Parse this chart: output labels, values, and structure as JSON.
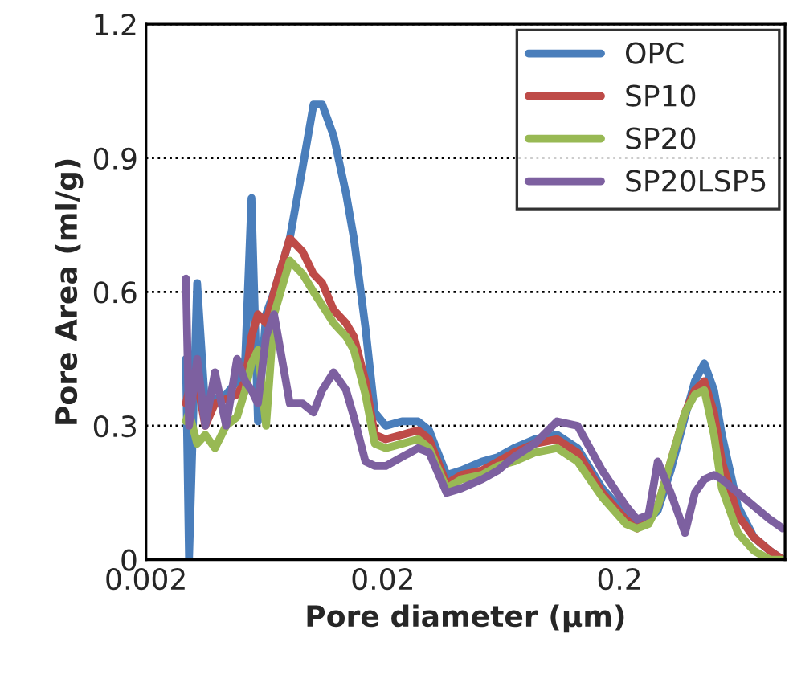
{
  "chart_data": {
    "type": "line",
    "xlabel": "Pore diameter (µm)",
    "ylabel": "Pore Area (ml/g)",
    "x": [
      0.00295,
      0.00304,
      0.00329,
      0.00356,
      0.00391,
      0.00436,
      0.00485,
      0.00525,
      0.00558,
      0.00594,
      0.00643,
      0.00695,
      0.0081,
      0.00918,
      0.0102,
      0.0111,
      0.0124,
      0.014,
      0.0151,
      0.0169,
      0.0185,
      0.0206,
      0.0241,
      0.0282,
      0.0314,
      0.0372,
      0.0429,
      0.0525,
      0.0613,
      0.0716,
      0.0877,
      0.109,
      0.133,
      0.169,
      0.213,
      0.237,
      0.265,
      0.29,
      0.329,
      0.378,
      0.416,
      0.456,
      0.501,
      0.541,
      0.632,
      0.739,
      0.863,
      0.978
    ],
    "series": [
      {
        "name": "OPC",
        "color": "#4a7ebb",
        "values": [
          0.45,
          0.0,
          0.62,
          0.34,
          0.36,
          0.37,
          0.4,
          0.45,
          0.81,
          0.31,
          0.55,
          0.6,
          0.72,
          0.88,
          1.02,
          1.02,
          0.95,
          0.82,
          0.72,
          0.52,
          0.33,
          0.3,
          0.31,
          0.31,
          0.29,
          0.19,
          0.2,
          0.22,
          0.23,
          0.25,
          0.27,
          0.28,
          0.25,
          0.16,
          0.1,
          0.08,
          0.09,
          0.11,
          0.2,
          0.32,
          0.4,
          0.44,
          0.38,
          0.28,
          0.12,
          0.05,
          0.02,
          0.0
        ]
      },
      {
        "name": "SP10",
        "color": "#be4b48",
        "values": [
          0.35,
          0.38,
          0.4,
          0.3,
          0.35,
          0.36,
          0.37,
          0.4,
          0.5,
          0.55,
          0.53,
          0.6,
          0.72,
          0.69,
          0.64,
          0.62,
          0.56,
          0.53,
          0.5,
          0.4,
          0.28,
          0.27,
          0.28,
          0.29,
          0.27,
          0.17,
          0.19,
          0.2,
          0.22,
          0.24,
          0.26,
          0.27,
          0.24,
          0.15,
          0.09,
          0.07,
          0.09,
          0.12,
          0.22,
          0.33,
          0.38,
          0.4,
          0.33,
          0.22,
          0.1,
          0.05,
          0.02,
          0.0
        ]
      },
      {
        "name": "SP20",
        "color": "#98b954",
        "values": [
          0.31,
          0.33,
          0.26,
          0.28,
          0.25,
          0.3,
          0.32,
          0.38,
          0.44,
          0.47,
          0.3,
          0.55,
          0.67,
          0.64,
          0.6,
          0.57,
          0.53,
          0.5,
          0.47,
          0.37,
          0.26,
          0.25,
          0.26,
          0.27,
          0.25,
          0.16,
          0.18,
          0.19,
          0.21,
          0.22,
          0.24,
          0.25,
          0.22,
          0.14,
          0.08,
          0.07,
          0.08,
          0.12,
          0.22,
          0.33,
          0.37,
          0.38,
          0.28,
          0.16,
          0.06,
          0.02,
          0.0,
          0.0
        ]
      },
      {
        "name": "SP20LSP5",
        "color": "#7d60a0",
        "values": [
          0.63,
          0.3,
          0.45,
          0.3,
          0.42,
          0.3,
          0.45,
          0.4,
          0.38,
          0.35,
          0.5,
          0.55,
          0.35,
          0.35,
          0.33,
          0.38,
          0.42,
          0.38,
          0.32,
          0.22,
          0.21,
          0.21,
          0.23,
          0.25,
          0.24,
          0.15,
          0.16,
          0.18,
          0.2,
          0.23,
          0.26,
          0.31,
          0.3,
          0.2,
          0.12,
          0.09,
          0.1,
          0.22,
          0.15,
          0.06,
          0.15,
          0.18,
          0.19,
          0.18,
          0.15,
          0.12,
          0.09,
          0.07
        ]
      }
    ],
    "log": "x",
    "xlim": [
      0.002,
      1
    ],
    "xticks": [
      0.002,
      0.02,
      0.2
    ],
    "ylim": [
      0,
      1.2
    ],
    "yticks": [
      0,
      0.3,
      0.6,
      0.9,
      1.2
    ],
    "grid": "y",
    "legend": "top right",
    "line_style": "solid",
    "marker": "none"
  }
}
